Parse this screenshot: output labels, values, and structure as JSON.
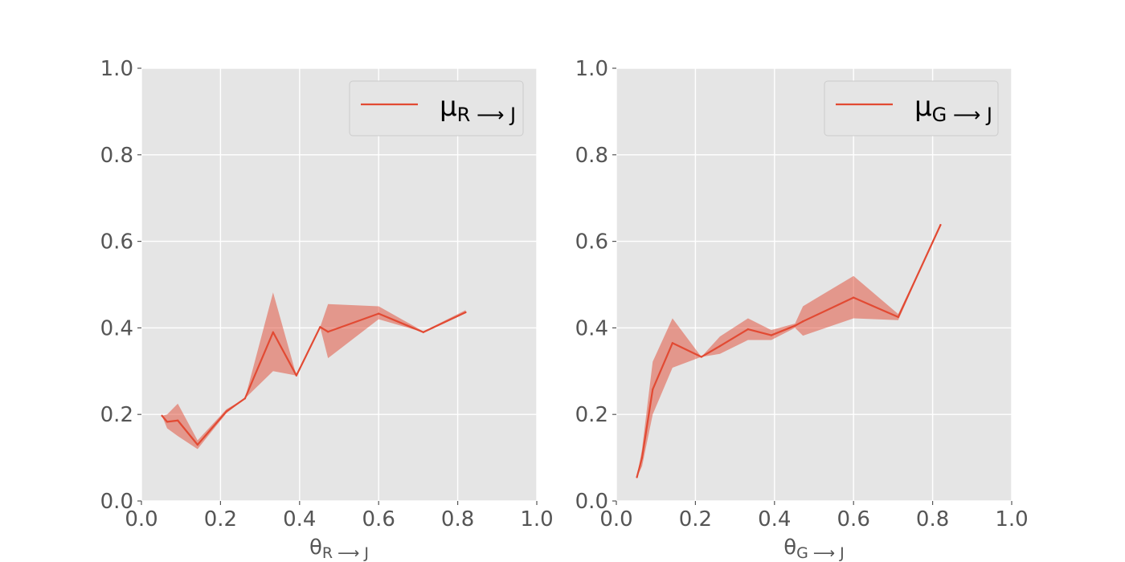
{
  "chart_data": [
    {
      "type": "line",
      "xlabel": {
        "main": "θ",
        "sub": "R ⟶ J"
      },
      "ylabel": "",
      "xlim": [
        0.0,
        1.0
      ],
      "ylim": [
        0.0,
        1.0
      ],
      "xticks": [
        "0.0",
        "0.2",
        "0.4",
        "0.6",
        "0.8",
        "1.0"
      ],
      "yticks": [
        "0.0",
        "0.2",
        "0.4",
        "0.6",
        "0.8",
        "1.0"
      ],
      "grid": true,
      "legend_position": "top-right",
      "series": [
        {
          "name": {
            "main": "μ",
            "sub": "R ⟶ J"
          },
          "color": "#E24A33",
          "band_color": "#E24A33",
          "x": [
            0.052,
            0.065,
            0.092,
            0.142,
            0.215,
            0.262,
            0.333,
            0.392,
            0.452,
            0.472,
            0.6,
            0.713,
            0.82
          ],
          "y": [
            0.197,
            0.183,
            0.186,
            0.13,
            0.207,
            0.237,
            0.39,
            0.29,
            0.402,
            0.391,
            0.433,
            0.39,
            0.436
          ],
          "lower": [
            0.197,
            0.168,
            0.15,
            0.12,
            0.203,
            0.237,
            0.3,
            0.29,
            0.402,
            0.33,
            0.42,
            0.39,
            0.434
          ],
          "upper": [
            0.197,
            0.2,
            0.225,
            0.14,
            0.212,
            0.237,
            0.482,
            0.29,
            0.402,
            0.455,
            0.45,
            0.392,
            0.441
          ]
        }
      ]
    },
    {
      "type": "line",
      "xlabel": {
        "main": "θ",
        "sub": "G ⟶ J"
      },
      "ylabel": "",
      "xlim": [
        0.0,
        1.0
      ],
      "ylim": [
        0.0,
        1.0
      ],
      "xticks": [
        "0.0",
        "0.2",
        "0.4",
        "0.6",
        "0.8",
        "1.0"
      ],
      "yticks": [
        "0.0",
        "0.2",
        "0.4",
        "0.6",
        "0.8",
        "1.0"
      ],
      "grid": true,
      "legend_position": "top-right",
      "series": [
        {
          "name": {
            "main": "μ",
            "sub": "G ⟶ J"
          },
          "color": "#E24A33",
          "band_color": "#E24A33",
          "x": [
            0.052,
            0.065,
            0.092,
            0.142,
            0.215,
            0.262,
            0.333,
            0.392,
            0.452,
            0.472,
            0.6,
            0.713,
            0.82
          ],
          "y": [
            0.055,
            0.1,
            0.258,
            0.365,
            0.333,
            0.358,
            0.397,
            0.383,
            0.405,
            0.415,
            0.47,
            0.425,
            0.638
          ],
          "lower": [
            0.055,
            0.08,
            0.2,
            0.308,
            0.333,
            0.34,
            0.372,
            0.372,
            0.4,
            0.382,
            0.422,
            0.418,
            0.638
          ],
          "upper": [
            0.055,
            0.12,
            0.322,
            0.422,
            0.333,
            0.38,
            0.422,
            0.395,
            0.41,
            0.45,
            0.52,
            0.432,
            0.638
          ]
        }
      ]
    }
  ]
}
